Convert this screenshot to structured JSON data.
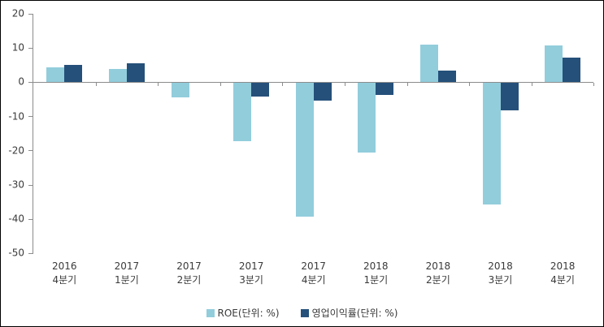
{
  "chart_data": {
    "type": "bar",
    "title": "",
    "xlabel": "",
    "ylabel": "",
    "categories": [
      "2016 4분기",
      "2017 1분기",
      "2017 2분기",
      "2017 3분기",
      "2017 4분기",
      "2018 1분기",
      "2018 2분기",
      "2018 3분기",
      "2018 4분기"
    ],
    "series": [
      {
        "name": "ROE(단위: %)",
        "color": "#92CDDC",
        "values": [
          4.4,
          3.9,
          -4.2,
          -17.0,
          -39.0,
          -20.2,
          10.9,
          -35.5,
          10.8
        ]
      },
      {
        "name": "영업이익률(단위: %)",
        "color": "#25507A",
        "values": [
          5.0,
          5.5,
          0.0,
          -3.9,
          -5.2,
          -3.4,
          3.3,
          -8.0,
          7.2
        ]
      }
    ],
    "ylim": [
      -50,
      20
    ],
    "y_ticks": [
      20,
      10,
      0,
      -10,
      -20,
      -30,
      -40,
      -50
    ],
    "grid": false,
    "legend_position": "bottom",
    "axis_color": "#8c8c8c",
    "text_color": "#3a3a3a"
  }
}
